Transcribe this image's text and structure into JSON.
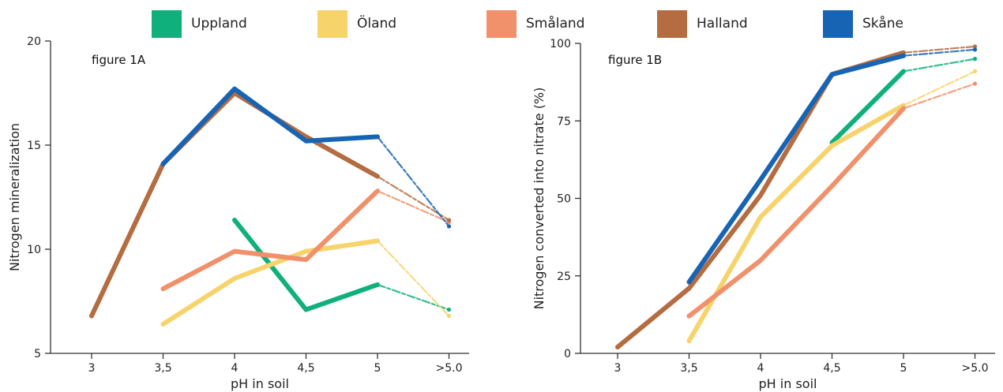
{
  "legend": [
    {
      "name": "Uppland",
      "color": "#10b07c"
    },
    {
      "name": "Öland",
      "color": "#f7d36b"
    },
    {
      "name": "Småland",
      "color": "#f0916b"
    },
    {
      "name": "Halland",
      "color": "#b46c40"
    },
    {
      "name": "Skåne",
      "color": "#1764b4"
    }
  ],
  "chart_data": [
    {
      "type": "line",
      "panel_label": "figure 1A",
      "xlabel": "pH in soil",
      "ylabel": "Nitrogen mineralization",
      "categories": [
        "3",
        "3,5",
        "4",
        "4,5",
        "5",
        ">5.0"
      ],
      "y_ticks": [
        "5",
        "10",
        "15",
        "20"
      ],
      "ylim": [
        5,
        20
      ],
      "series": [
        {
          "name": "Uppland",
          "values": [
            null,
            null,
            11.4,
            7.1,
            8.3,
            7.1
          ]
        },
        {
          "name": "Öland",
          "values": [
            null,
            6.4,
            8.6,
            9.9,
            10.4,
            6.8
          ]
        },
        {
          "name": "Småland",
          "values": [
            null,
            8.1,
            9.9,
            9.5,
            12.8,
            11.3
          ]
        },
        {
          "name": "Halland",
          "values": [
            6.8,
            14.1,
            17.5,
            15.4,
            13.5,
            11.4
          ]
        },
        {
          "name": "Skåne",
          "values": [
            null,
            14.1,
            17.7,
            15.2,
            15.4,
            11.1
          ]
        }
      ]
    },
    {
      "type": "line",
      "panel_label": "figure 1B",
      "xlabel": "pH in soil",
      "ylabel": "Nitrogen converted into nitrate (%)",
      "categories": [
        "3",
        "3,5",
        "4",
        "4,5",
        "5",
        ">5.0"
      ],
      "y_ticks": [
        "0",
        "25",
        "50",
        "75",
        "100"
      ],
      "ylim": [
        0,
        100
      ],
      "series": [
        {
          "name": "Uppland",
          "values": [
            null,
            null,
            null,
            68,
            91,
            95
          ]
        },
        {
          "name": "Öland",
          "values": [
            null,
            4,
            44,
            67,
            80,
            91
          ]
        },
        {
          "name": "Småland",
          "values": [
            null,
            12,
            30,
            54,
            79,
            87
          ]
        },
        {
          "name": "Halland",
          "values": [
            2,
            21,
            51,
            90,
            97,
            99
          ]
        },
        {
          "name": "Skåne",
          "values": [
            null,
            23,
            56,
            90,
            96,
            98
          ]
        }
      ]
    }
  ]
}
